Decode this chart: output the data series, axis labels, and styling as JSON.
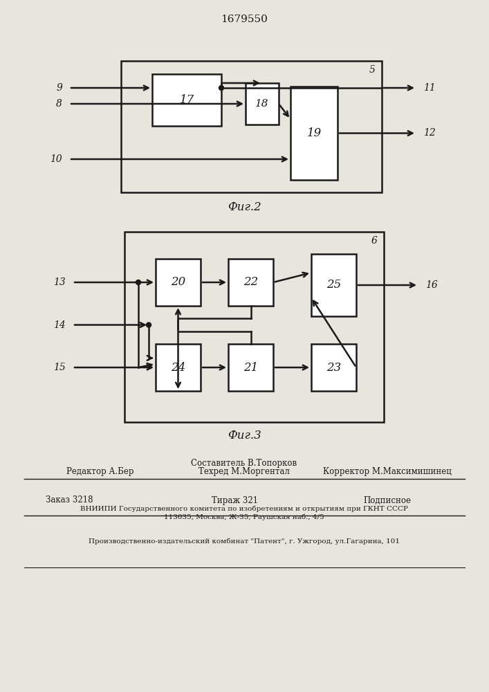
{
  "title": "1679550",
  "bg_color": "#e8e4de",
  "line_color": "#1a1a1a",
  "box_color": "#ffffff",
  "font_color": "#1a1a1a",
  "fig2_caption": "Фиг.2",
  "fig3_caption": "Фиг.3",
  "footer_line1_left": "Редактор А.Бер",
  "footer_line1_mid1": "Составитель В.Топорков",
  "footer_line1_mid2": "Техред М.Моргентал",
  "footer_line1_right": "Корректор М.Максимишинец",
  "footer_order": "Заказ 3218",
  "footer_tirazh": "Тираж 321",
  "footer_podp": "Подписное",
  "footer_vniipи": "ВНИИПИ Государственного комитета по изобретениям и открытиям при ГКНТ СССР",
  "footer_addr": "113035, Москва, Ж-35, Раушская наб., 4/5",
  "footer_patent": "Производственно-издательский комбинат \"Патент\", г. Ужгород, ул.Гагарина, 101"
}
